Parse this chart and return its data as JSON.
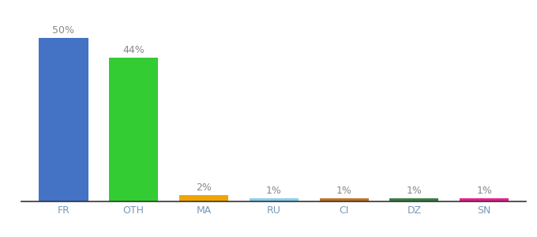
{
  "categories": [
    "FR",
    "OTH",
    "MA",
    "RU",
    "CI",
    "DZ",
    "SN"
  ],
  "values": [
    50,
    44,
    2,
    1,
    1,
    1,
    1
  ],
  "bar_colors": [
    "#4472c4",
    "#33cc33",
    "#f0a500",
    "#87ceeb",
    "#c0722a",
    "#3a7d44",
    "#e91e8c"
  ],
  "labels": [
    "50%",
    "44%",
    "2%",
    "1%",
    "1%",
    "1%",
    "1%"
  ],
  "ylim": [
    0,
    58
  ],
  "background_color": "#ffffff",
  "label_fontsize": 9,
  "tick_fontsize": 9,
  "bar_width": 0.7,
  "label_color": "#888888",
  "tick_color": "#7799bb"
}
